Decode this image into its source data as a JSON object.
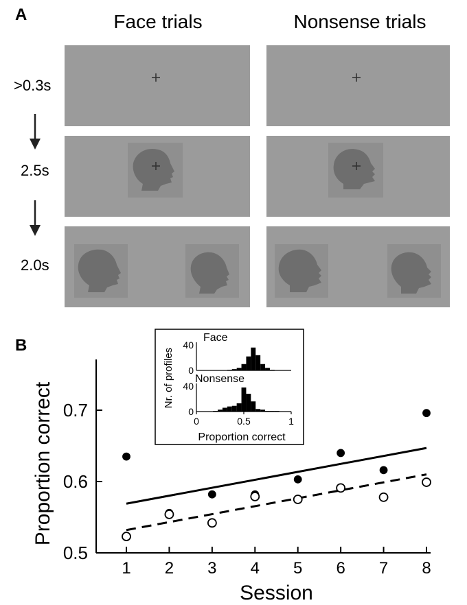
{
  "panel_a": {
    "label": "A",
    "columns": [
      "Face trials",
      "Nonsense trials"
    ],
    "timings": [
      ">0.3s",
      "2.5s",
      "2.0s"
    ]
  },
  "panel_b": {
    "label": "B"
  },
  "colors": {
    "screen_gray": "#9b9b9b",
    "tile_gray": "#8f8f8f",
    "silhouette_gray": "#6e6e6e"
  },
  "chart_data": [
    {
      "type": "scatter",
      "xlabel": "Session",
      "ylabel": "Proportion correct",
      "xlim": [
        1,
        8
      ],
      "ylim": [
        0.5,
        0.75
      ],
      "x_ticks": [
        "1",
        "2",
        "3",
        "4",
        "5",
        "6",
        "7",
        "8"
      ],
      "y_ticks": [
        "0.5",
        "0.6",
        "0.7"
      ],
      "series": [
        {
          "marker": "filled-circle",
          "x": [
            1,
            2,
            3,
            4,
            5,
            6,
            7,
            8
          ],
          "y": [
            0.635,
            0.556,
            0.582,
            0.582,
            0.603,
            0.64,
            0.616,
            0.696
          ],
          "fit": {
            "style": "solid",
            "y_start": 0.569,
            "y_end": 0.647
          }
        },
        {
          "marker": "open-circle",
          "x": [
            1,
            2,
            3,
            4,
            5,
            6,
            7,
            8
          ],
          "y": [
            0.523,
            0.554,
            0.542,
            0.579,
            0.575,
            0.591,
            0.578,
            0.599
          ],
          "fit": {
            "style": "dashed",
            "y_start": 0.532,
            "y_end": 0.61
          }
        }
      ],
      "grid": false
    },
    {
      "type": "bar",
      "inset": true,
      "ylabel": "Nr. of profiles",
      "xlabel": "Proportion correct",
      "x_ticks": [
        "0",
        "0.5",
        "1"
      ],
      "y_ticks": [
        "0",
        "40"
      ],
      "panels": [
        {
          "title": "Face",
          "bins": [
            0.35,
            0.4,
            0.45,
            0.5,
            0.55,
            0.6,
            0.65,
            0.7,
            0.75,
            0.8
          ],
          "values": [
            1,
            2,
            4,
            10,
            22,
            36,
            24,
            10,
            4,
            1
          ]
        },
        {
          "title": "Nonsense",
          "bins": [
            0.2,
            0.25,
            0.3,
            0.35,
            0.4,
            0.45,
            0.5,
            0.55,
            0.6,
            0.65,
            0.7,
            0.75,
            0.8,
            0.85
          ],
          "values": [
            1,
            3,
            6,
            8,
            9,
            13,
            38,
            28,
            16,
            4,
            3,
            1,
            1,
            1
          ]
        }
      ]
    }
  ]
}
